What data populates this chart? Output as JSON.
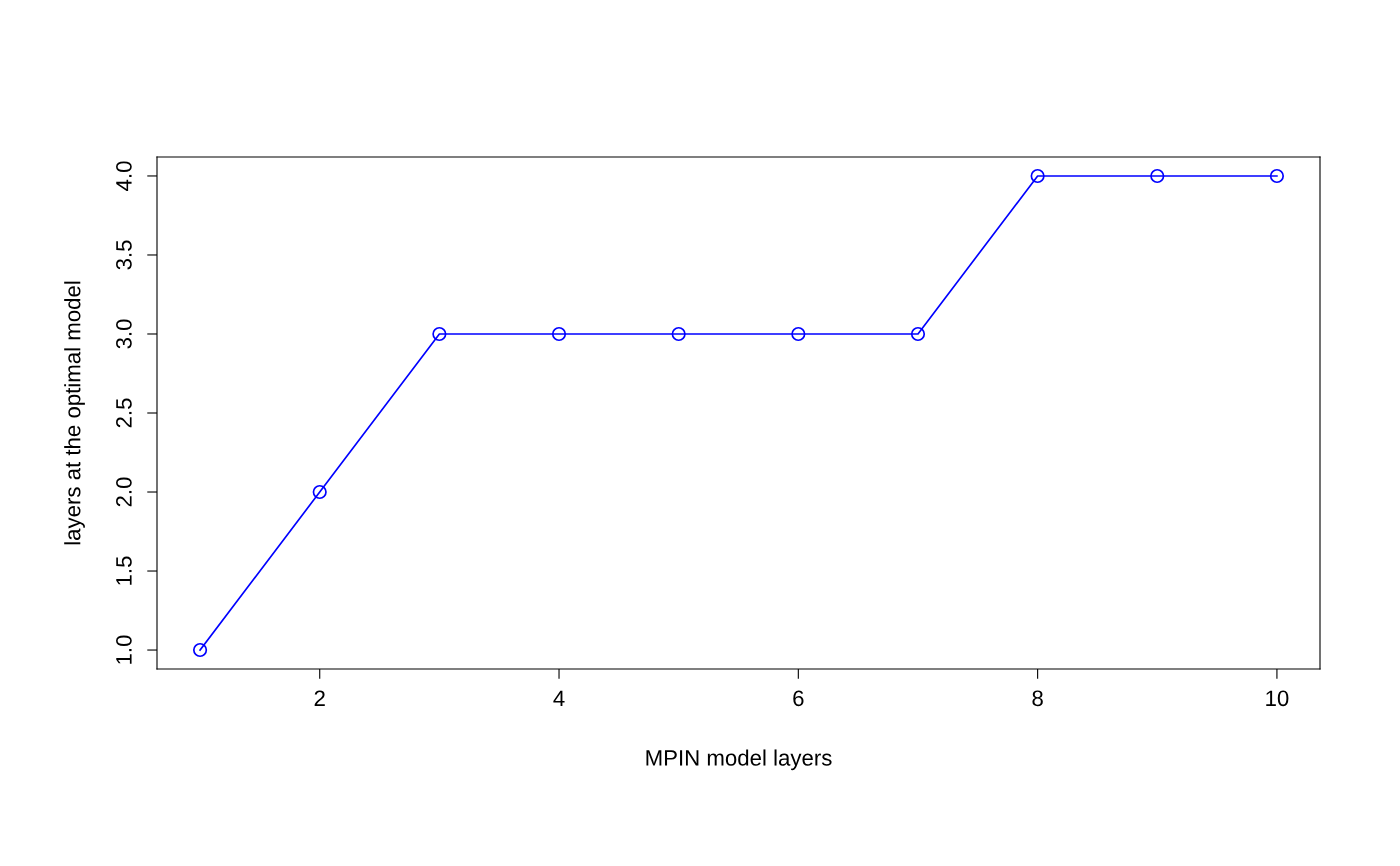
{
  "chart_data": {
    "type": "line",
    "xlabel": "MPIN model layers",
    "ylabel": "layers at the optimal model",
    "x": [
      1,
      2,
      3,
      4,
      5,
      6,
      7,
      8,
      9,
      10
    ],
    "series": [
      {
        "color": "#0000ff",
        "values": [
          1,
          2,
          3,
          3,
          3,
          3,
          3,
          4,
          4,
          4
        ]
      }
    ],
    "xlim": [
      0.64,
      10.36
    ],
    "xticks": [
      2,
      4,
      6,
      8,
      10
    ],
    "ylim": [
      0.88,
      4.12
    ],
    "yticks": [
      {
        "value": 1,
        "label": "1.0"
      },
      {
        "value": 1.5,
        "label": "1.5"
      },
      {
        "value": 2,
        "label": "2.0"
      },
      {
        "value": 2.5,
        "label": "2.5"
      },
      {
        "value": 3,
        "label": "3.0"
      },
      {
        "value": 3.5,
        "label": "3.5"
      },
      {
        "value": 4,
        "label": "4.0"
      }
    ],
    "marker": "circle",
    "line_style": "solid",
    "grid": false,
    "legend": false
  }
}
